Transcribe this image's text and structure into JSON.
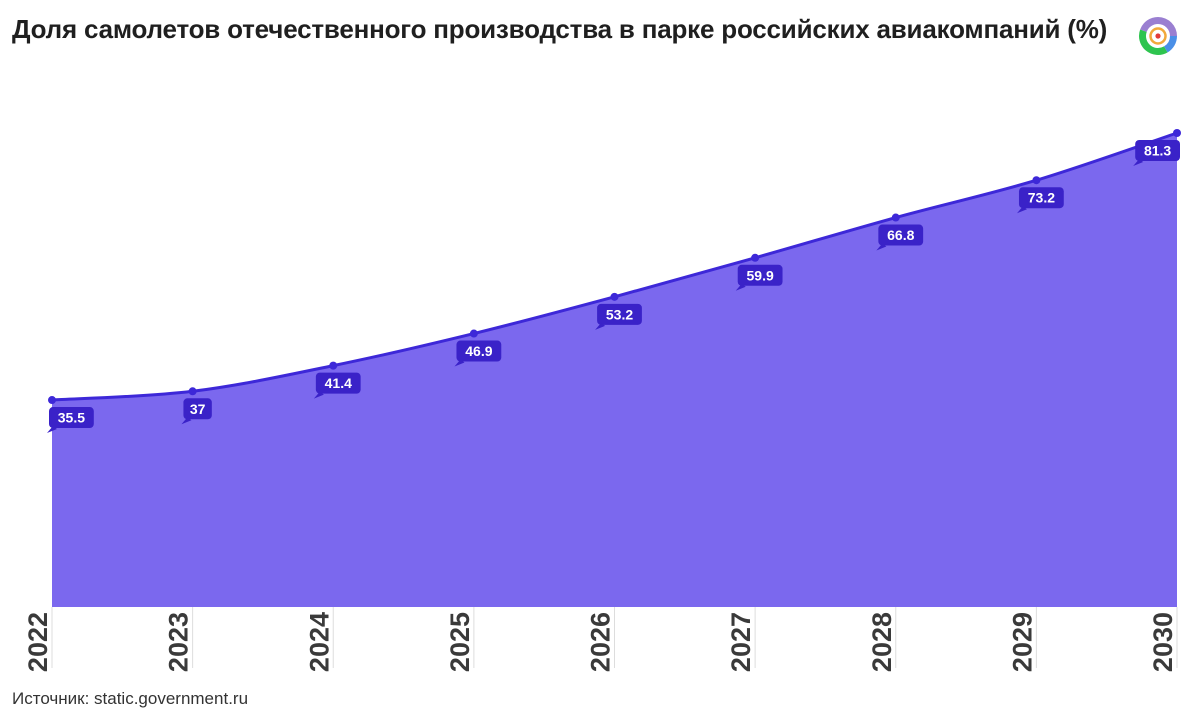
{
  "title": "Доля самолетов отечественного производства в парке российских авиакомпаний (%)",
  "source": "Источник: static.government.ru",
  "logo_icon": "donut-logo-icon",
  "colors": {
    "area": "#7b68ee",
    "line": "#3d28d8",
    "label_bg": "#3a22c8",
    "label_text": "#ffffff",
    "logo": [
      "#9a7fd1",
      "#4a8fe7",
      "#2ec44f",
      "#e23a3a",
      "#f2a93b"
    ]
  },
  "chart_data": {
    "type": "area",
    "title": "Доля самолетов отечественного производства в парке российских авиакомпаний (%)",
    "categories": [
      "2022",
      "2023",
      "2024",
      "2025",
      "2026",
      "2027",
      "2028",
      "2029",
      "2030"
    ],
    "values": [
      35.5,
      37,
      41.4,
      46.9,
      53.2,
      59.9,
      66.8,
      73.2,
      81.3
    ],
    "data_labels": [
      "35.5",
      "37",
      "41.4",
      "46.9",
      "53.2",
      "59.9",
      "66.8",
      "73.2",
      "81.3"
    ],
    "xlabel": "",
    "ylabel": "",
    "ylim": [
      0,
      81.3
    ],
    "grid": false,
    "legend": "none",
    "x_tick_rotation": "vertical"
  }
}
